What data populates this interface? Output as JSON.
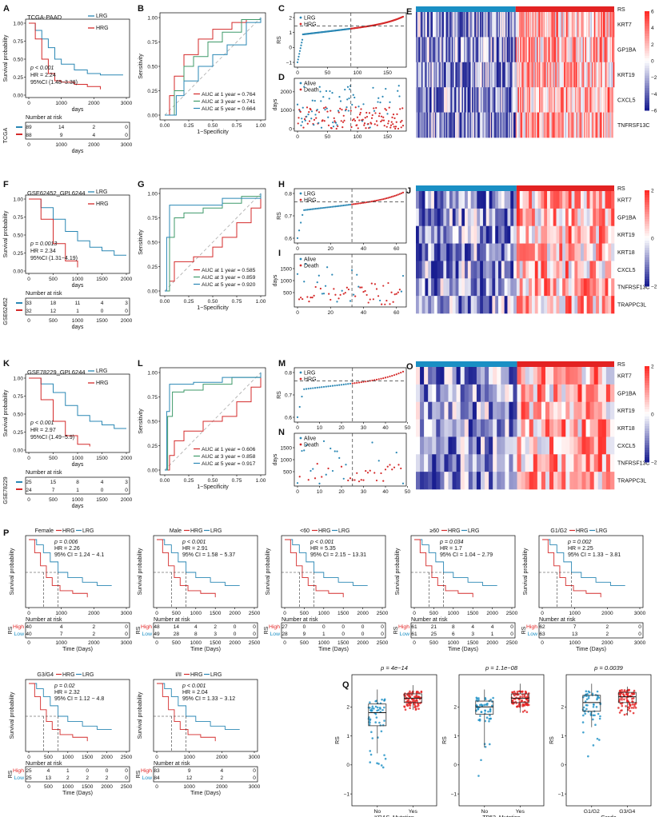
{
  "colors": {
    "lrg": "#2a87b4",
    "hrg": "#d42a2a",
    "low": "#1a8fc4",
    "high": "#e32222",
    "gray": "#aaaaaa",
    "green": "#3f9a6a"
  },
  "tcga": {
    "letter_km": "A",
    "letter_roc": "B",
    "letter_rs": "C",
    "letter_surv": "D",
    "letter_heat": "E",
    "title": "TCGA-PAAD",
    "lrg": "LRG",
    "hrg": "HRG",
    "pval": "p < 0.001",
    "hr": "HR = 2.24",
    "ci": "95%CI (1.48−3.38)",
    "xlabel": "days",
    "ylabel": "Survival probability",
    "cohort": "TCGA",
    "nrisk_title": "Number at risk",
    "xticks": [
      "0",
      "1000",
      "2000",
      "3000"
    ],
    "yticks": [
      "0.00",
      "0.25",
      "0.50",
      "0.75",
      "1.00"
    ],
    "risk_lrg": [
      "89",
      "14",
      "2",
      "0"
    ],
    "risk_hrg": [
      "88",
      "9",
      "4",
      "0"
    ],
    "roc": {
      "lines": [
        "AUC at 1 year = 0.764",
        "AUC at 3 year = 0.741",
        "AUC at 5 year = 0.664"
      ],
      "xticks": [
        "0.00",
        "0.25",
        "0.50",
        "0.75",
        "1.00"
      ],
      "yticks": [
        "0.00",
        "0.25",
        "0.50",
        "0.75",
        "1.00"
      ],
      "xlabel": "1−Specificity",
      "ylabel": "Sensitivity"
    },
    "rs": {
      "yticks": [
        "−1",
        "0",
        "1",
        "2"
      ],
      "xticks": [
        "0",
        "50",
        "100",
        "150"
      ],
      "ylabel": "RS",
      "n": 177,
      "cut": 89,
      "ymin": -1.3,
      "ymax": 2.8
    },
    "surv": {
      "yticks": [
        "0",
        "1000",
        "2000"
      ],
      "xticks": [
        "0",
        "50",
        "100",
        "150"
      ],
      "ylabel": "days",
      "alive": "Alive",
      "death": "Death",
      "ymax": 2600
    },
    "genes": [
      "RS",
      "KRT7",
      "GP1BA",
      "KRT19",
      "CXCL5",
      "TNFRSF13C"
    ],
    "scale": [
      "6",
      "4",
      "2",
      "0",
      "−2",
      "−4",
      "−6"
    ]
  },
  "gse62452": {
    "letter_km": "F",
    "letter_roc": "G",
    "letter_rs": "H",
    "letter_surv": "I",
    "letter_heat": "J",
    "title": "GSE62452_GPL6244",
    "lrg": "LRG",
    "hrg": "HRG",
    "pval": "p = 0.0013",
    "hr": "HR = 2.34",
    "ci": "95%CI (1.31−4.19)",
    "xlabel": "days",
    "ylabel": "Survival probability",
    "cohort": "GSE62452",
    "nrisk_title": "Number at risk",
    "xticks": [
      "0",
      "500",
      "1000",
      "1500",
      "2000"
    ],
    "yticks": [
      "0.00",
      "0.25",
      "0.50",
      "0.75",
      "1.00"
    ],
    "risk_lrg": [
      "33",
      "18",
      "11",
      "4",
      "3"
    ],
    "risk_hrg": [
      "32",
      "12",
      "1",
      "0",
      "0"
    ],
    "roc": {
      "lines": [
        "AUC at 1 year = 0.585",
        "AUC at 3 year = 0.859",
        "AUC at 5 year = 0.920"
      ],
      "xticks": [
        "0.00",
        "0.25",
        "0.50",
        "0.75",
        "1.00"
      ],
      "yticks": [
        "0.00",
        "0.25",
        "0.50",
        "0.75",
        "1.00"
      ],
      "xlabel": "1−Specificity",
      "ylabel": "Sensitivity"
    },
    "rs": {
      "yticks": [
        "0.6",
        "0.7",
        "0.8"
      ],
      "xticks": [
        "0",
        "20",
        "40",
        "60"
      ],
      "ylabel": "RS",
      "n": 65,
      "cut": 33,
      "ymin": 0.5,
      "ymax": 0.88
    },
    "surv": {
      "yticks": [
        "500",
        "1000",
        "1500"
      ],
      "xticks": [
        "0",
        "20",
        "40",
        "60"
      ],
      "ylabel": "days",
      "alive": "Alive",
      "death": "Death",
      "ymax": 2000
    },
    "genes": [
      "RS",
      "KRT7",
      "GP1BA",
      "KRT19",
      "KRT18",
      "CXCL5",
      "TNFRSF13C",
      "TRAPPC3L"
    ],
    "scale": [
      "2",
      "0",
      "−2"
    ]
  },
  "gse78229": {
    "letter_km": "K",
    "letter_roc": "L",
    "letter_rs": "M",
    "letter_surv": "N",
    "letter_heat": "O",
    "title": "GSE78229_GPL6244",
    "lrg": "LRG",
    "hrg": "HRG",
    "pval": "p < 0.001",
    "hr": "HR = 2.97",
    "ci": "95%CI (1.49−5.9)",
    "xlabel": "days",
    "ylabel": "Survival probability",
    "cohort": "GSE78229",
    "nrisk_title": "Number at risk",
    "xticks": [
      "0",
      "500",
      "1000",
      "1500",
      "2000"
    ],
    "yticks": [
      "0.00",
      "0.25",
      "0.50",
      "0.75",
      "1.00"
    ],
    "risk_lrg": [
      "25",
      "15",
      "8",
      "4",
      "3"
    ],
    "risk_hrg": [
      "24",
      "7",
      "1",
      "0",
      "0"
    ],
    "roc": {
      "lines": [
        "AUC at 1 year = 0.606",
        "AUC at 3 year = 0.858",
        "AUC at 5 year = 0.917"
      ],
      "xticks": [
        "0.00",
        "0.25",
        "0.50",
        "0.75",
        "1.00"
      ],
      "yticks": [
        "0.00",
        "0.25",
        "0.50",
        "0.75",
        "1.00"
      ],
      "xlabel": "1−Specificity",
      "ylabel": "Sensitivity"
    },
    "rs": {
      "yticks": [
        "0.6",
        "0.7",
        "0.8"
      ],
      "xticks": [
        "0",
        "10",
        "20",
        "30",
        "40",
        "50"
      ],
      "ylabel": "RS",
      "n": 49,
      "cut": 25,
      "ymin": 0.5,
      "ymax": 0.88
    },
    "surv": {
      "yticks": [
        "500",
        "1000",
        "1500"
      ],
      "xticks": [
        "0",
        "10",
        "20",
        "30",
        "40",
        "50"
      ],
      "ylabel": "days",
      "alive": "Alive",
      "death": "Death",
      "ymax": 2000
    },
    "genes": [
      "RS",
      "KRT7",
      "GP1BA",
      "KRT19",
      "KRT18",
      "CXCL5",
      "TNFRSF13C",
      "TRAPPC3L"
    ],
    "scale": [
      "2",
      "0",
      "−2"
    ]
  },
  "panelP": {
    "letter": "P",
    "hrg": "HRG",
    "lrg": "LRG",
    "ylabel": "Survival probability",
    "xlabel": "Time (Days)",
    "nrisk": "Number at risk",
    "rs": "RS",
    "high": "High",
    "low": "Low",
    "subs": [
      {
        "title": "Female",
        "p": "p = 0.006",
        "hr": "HR = 2.26",
        "ci": "95% CI = 1.24 − 4.1",
        "xticks": [
          "0",
          "1000",
          "2000",
          "3000"
        ],
        "high": [
          "40",
          "4",
          "2",
          "0"
        ],
        "low": [
          "40",
          "7",
          "2",
          "0"
        ]
      },
      {
        "title": "Male",
        "p": "p < 0.001",
        "hr": "HR = 2.91",
        "ci": "95% CI = 1.58 − 5.37",
        "xticks": [
          "0",
          "500",
          "1000",
          "1500",
          "2000",
          "2500"
        ],
        "high": [
          "48",
          "14",
          "4",
          "2",
          "0",
          "0"
        ],
        "low": [
          "49",
          "28",
          "8",
          "3",
          "0",
          "0"
        ]
      },
      {
        "title": "<60",
        "p": "p < 0.001",
        "hr": "HR = 5.35",
        "ci": "95% CI = 2.15 − 13.31",
        "xticks": [
          "0",
          "500",
          "1000",
          "1500",
          "2000",
          "2500"
        ],
        "high": [
          "27",
          "0",
          "0",
          "0",
          "0",
          "0"
        ],
        "low": [
          "28",
          "9",
          "1",
          "0",
          "0",
          "0"
        ]
      },
      {
        "title": "≥60",
        "p": "p = 0.034",
        "hr": "HR = 1.7",
        "ci": "95% CI = 1.04 − 2.79",
        "xticks": [
          "0",
          "500",
          "1000",
          "1500",
          "2000",
          "2500"
        ],
        "high": [
          "61",
          "21",
          "8",
          "4",
          "4",
          "0"
        ],
        "low": [
          "61",
          "25",
          "6",
          "3",
          "1",
          "0"
        ]
      },
      {
        "title": "G1/G2",
        "p": "p = 0.002",
        "hr": "HR = 2.25",
        "ci": "95% CI = 1.33 − 3.81",
        "xticks": [
          "0",
          "1000",
          "2000",
          "3000"
        ],
        "high": [
          "62",
          "7",
          "2",
          "0"
        ],
        "low": [
          "63",
          "13",
          "2",
          "0"
        ]
      },
      {
        "title": "G3/G4",
        "p": "p = 0.02",
        "hr": "HR = 2.32",
        "ci": "95% CI = 1.12 − 4.8",
        "xticks": [
          "0",
          "500",
          "1000",
          "1500",
          "2000",
          "2500"
        ],
        "high": [
          "25",
          "4",
          "1",
          "0",
          "0",
          "0"
        ],
        "low": [
          "25",
          "13",
          "2",
          "2",
          "2",
          "0"
        ]
      },
      {
        "title": "I/II",
        "p": "p < 0.001",
        "hr": "HR = 2.04",
        "ci": "95% CI = 1.33 − 3.12",
        "xticks": [
          "0",
          "1000",
          "2000",
          "3000"
        ],
        "high": [
          "83",
          "9",
          "4",
          "0"
        ],
        "low": [
          "84",
          "12",
          "2",
          "0"
        ]
      }
    ]
  },
  "panelQ": {
    "letter": "Q",
    "ylabel": "RS",
    "yticks": [
      "−1",
      "0",
      "1",
      "2"
    ],
    "boxes": [
      {
        "p": "p = 4e−14",
        "cats": [
          "No",
          "Yes"
        ],
        "xlabel": "KRAS_Mutation",
        "stats": [
          [
            0.4,
            1.35,
            1.8,
            2.1,
            2.6
          ],
          [
            1.9,
            2.15,
            2.3,
            2.45,
            2.75
          ]
        ]
      },
      {
        "p": "p = 1.1e−08",
        "cats": [
          "No",
          "Yes"
        ],
        "xlabel": "TP53_Mutation",
        "stats": [
          [
            0.6,
            1.75,
            2.0,
            2.2,
            2.6
          ],
          [
            1.8,
            2.15,
            2.3,
            2.45,
            2.8
          ]
        ]
      },
      {
        "p": "p = 0.0039",
        "cats": [
          "G1/G2",
          "G3/G4"
        ],
        "xlabel": "Grade",
        "stats": [
          [
            1.3,
            1.85,
            2.15,
            2.4,
            2.8
          ],
          [
            1.7,
            2.15,
            2.35,
            2.5,
            2.7
          ]
        ]
      }
    ]
  },
  "chart_data": [
    {
      "type": "line",
      "title": "TCGA-PAAD",
      "xlabel": "days",
      "ylabel": "Survival probability",
      "ylim": [
        0,
        1
      ],
      "xlim": [
        0,
        3000
      ],
      "series": [
        {
          "name": "LRG",
          "x": [
            0,
            200,
            400,
            600,
            800,
            1000,
            1400,
            1800,
            2200,
            2600,
            2900
          ],
          "y": [
            1.0,
            0.9,
            0.78,
            0.66,
            0.5,
            0.43,
            0.35,
            0.3,
            0.28,
            0.28,
            0.28
          ]
        },
        {
          "name": "HRG",
          "x": [
            0,
            200,
            400,
            600,
            800,
            1000,
            1400,
            1800,
            2200
          ],
          "y": [
            1.0,
            0.78,
            0.5,
            0.3,
            0.2,
            0.18,
            0.15,
            0.12,
            0.08
          ]
        }
      ]
    },
    {
      "type": "line",
      "title": "GSE62452_GPL6244",
      "xlabel": "days",
      "ylabel": "Survival probability",
      "ylim": [
        0,
        1
      ],
      "xlim": [
        0,
        2000
      ],
      "series": [
        {
          "name": "LRG",
          "x": [
            0,
            250,
            500,
            750,
            1000,
            1250,
            1500,
            1750,
            2000
          ],
          "y": [
            1.0,
            0.88,
            0.72,
            0.55,
            0.42,
            0.33,
            0.28,
            0.22,
            0.22
          ]
        },
        {
          "name": "HRG",
          "x": [
            0,
            250,
            500,
            750,
            1000
          ],
          "y": [
            1.0,
            0.72,
            0.38,
            0.14,
            0.05
          ]
        }
      ]
    },
    {
      "type": "line",
      "title": "GSE78229_GPL6244",
      "xlabel": "days",
      "ylabel": "Survival probability",
      "ylim": [
        0,
        1
      ],
      "xlim": [
        0,
        2000
      ],
      "series": [
        {
          "name": "LRG",
          "x": [
            0,
            250,
            500,
            750,
            1000,
            1250,
            1500,
            1750,
            2000
          ],
          "y": [
            1.0,
            0.92,
            0.8,
            0.62,
            0.48,
            0.4,
            0.35,
            0.3,
            0.3
          ]
        },
        {
          "name": "HRG",
          "x": [
            0,
            250,
            500,
            750,
            1000,
            1250
          ],
          "y": [
            1.0,
            0.7,
            0.4,
            0.2,
            0.08,
            0.05
          ]
        }
      ]
    },
    {
      "type": "line",
      "title": "",
      "xlabel": "1−Specificity",
      "ylabel": "Sensitivity",
      "ylim": [
        0,
        1
      ],
      "xlim": [
        0,
        1
      ],
      "series": [
        {
          "name": "AUC at 1 year = 0.764",
          "x": [
            0,
            0.05,
            0.1,
            0.2,
            0.35,
            0.5,
            0.7,
            0.85,
            1
          ],
          "y": [
            0,
            0.2,
            0.4,
            0.62,
            0.78,
            0.88,
            0.95,
            0.98,
            1
          ]
        },
        {
          "name": "AUC at 3 year = 0.741",
          "x": [
            0,
            0.1,
            0.2,
            0.3,
            0.45,
            0.6,
            0.8,
            1
          ],
          "y": [
            0,
            0.25,
            0.5,
            0.6,
            0.75,
            0.85,
            0.98,
            1
          ]
        },
        {
          "name": "AUC at 5 year = 0.664",
          "x": [
            0,
            0.12,
            0.2,
            0.35,
            0.5,
            0.65,
            0.85,
            1
          ],
          "y": [
            0,
            0.2,
            0.35,
            0.5,
            0.62,
            0.72,
            0.95,
            1
          ]
        }
      ]
    },
    {
      "type": "line",
      "title": "",
      "xlabel": "1−Specificity",
      "ylabel": "Sensitivity",
      "ylim": [
        0,
        1
      ],
      "xlim": [
        0,
        1
      ],
      "series": [
        {
          "name": "AUC at 1 year = 0.585",
          "x": [
            0,
            0.05,
            0.1,
            0.3,
            0.5,
            0.6,
            0.75,
            0.9,
            1
          ],
          "y": [
            0,
            0.1,
            0.3,
            0.35,
            0.45,
            0.55,
            0.7,
            0.85,
            1
          ]
        },
        {
          "name": "AUC at 3 year = 0.859",
          "x": [
            0,
            0.05,
            0.1,
            0.2,
            0.4,
            0.6,
            0.8,
            1
          ],
          "y": [
            0,
            0.55,
            0.75,
            0.8,
            0.85,
            0.9,
            0.97,
            1
          ]
        },
        {
          "name": "AUC at 5 year = 0.920",
          "x": [
            0,
            0.02,
            0.05,
            0.3,
            0.6,
            1
          ],
          "y": [
            0,
            0.55,
            0.88,
            0.88,
            0.95,
            1
          ]
        }
      ]
    },
    {
      "type": "line",
      "title": "",
      "xlabel": "1−Specificity",
      "ylabel": "Sensitivity",
      "ylim": [
        0,
        1
      ],
      "xlim": [
        0,
        1
      ],
      "series": [
        {
          "name": "AUC at 1 year = 0.606",
          "x": [
            0,
            0.05,
            0.1,
            0.2,
            0.4,
            0.6,
            0.75,
            0.9,
            1
          ],
          "y": [
            0,
            0.15,
            0.3,
            0.4,
            0.5,
            0.55,
            0.7,
            0.85,
            1
          ]
        },
        {
          "name": "AUC at 3 year = 0.858",
          "x": [
            0,
            0.03,
            0.08,
            0.2,
            0.4,
            0.7,
            1
          ],
          "y": [
            0,
            0.55,
            0.8,
            0.82,
            0.88,
            0.95,
            1
          ]
        },
        {
          "name": "AUC at 5 year = 0.917",
          "x": [
            0,
            0.02,
            0.05,
            0.3,
            0.6,
            1
          ],
          "y": [
            0,
            0.6,
            0.88,
            0.9,
            0.95,
            1
          ]
        }
      ]
    }
  ]
}
